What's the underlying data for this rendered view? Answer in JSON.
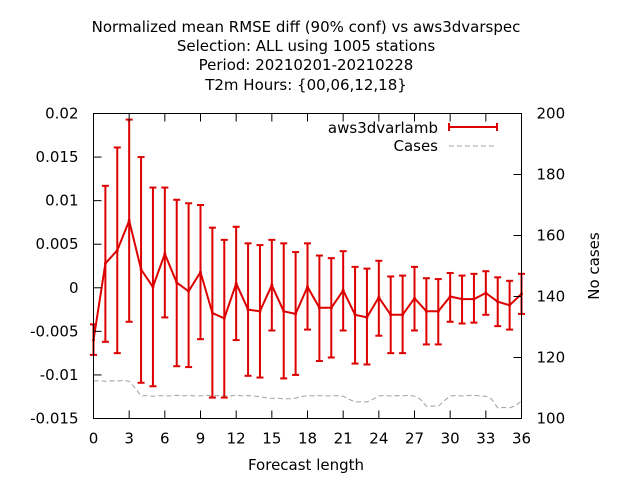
{
  "chart_data": {
    "type": "line",
    "title_lines": [
      "Normalized mean RMSE diff (90% conf) vs aws3dvarspec",
      "Selection: ALL using  1005 stations",
      "Period: 20210201-20210228",
      "T2m   Hours: {00,06,12,18}"
    ],
    "xlabel": "Forecast length",
    "ylabel_left": "",
    "ylabel_right": "No cases",
    "xlim": [
      0,
      36
    ],
    "ylim_left": [
      -0.015,
      0.02
    ],
    "ylim_right": [
      100,
      200
    ],
    "x_ticks": [
      0,
      3,
      6,
      9,
      12,
      15,
      18,
      21,
      24,
      27,
      30,
      33,
      36
    ],
    "y_ticks_left": [
      "-0.015",
      "-0.01",
      "-0.005",
      "0",
      "0.005",
      "0.01",
      "0.015",
      "0.02"
    ],
    "y_ticks_right": [
      100,
      120,
      140,
      160,
      180,
      200
    ],
    "grid": false,
    "legend_position": "top-right",
    "series": [
      {
        "name": "aws3dvarlamb",
        "color": "#dd0000",
        "style": "line-errorbars",
        "points": [
          {
            "x": 0,
            "y": -0.006,
            "lo": -0.0077,
            "hi": -0.0042
          },
          {
            "x": 1,
            "y": 0.0028,
            "lo": -0.0062,
            "hi": 0.0117
          },
          {
            "x": 2,
            "y": 0.0043,
            "lo": -0.0075,
            "hi": 0.0161
          },
          {
            "x": 3,
            "y": 0.0077,
            "lo": -0.0039,
            "hi": 0.0193
          },
          {
            "x": 4,
            "y": 0.0021,
            "lo": -0.0109,
            "hi": 0.015
          },
          {
            "x": 5,
            "y": 0.0001,
            "lo": -0.0113,
            "hi": 0.0115
          },
          {
            "x": 6,
            "y": 0.0039,
            "lo": -0.0034,
            "hi": 0.0115
          },
          {
            "x": 7,
            "y": 0.0006,
            "lo": -0.009,
            "hi": 0.0101
          },
          {
            "x": 8,
            "y": -0.0004,
            "lo": -0.0091,
            "hi": 0.0097
          },
          {
            "x": 9,
            "y": 0.0018,
            "lo": -0.0059,
            "hi": 0.0095
          },
          {
            "x": 10,
            "y": -0.0029,
            "lo": -0.0126,
            "hi": 0.0069
          },
          {
            "x": 11,
            "y": -0.0035,
            "lo": -0.0126,
            "hi": 0.0055
          },
          {
            "x": 12,
            "y": 0.0005,
            "lo": -0.006,
            "hi": 0.007
          },
          {
            "x": 13,
            "y": -0.0025,
            "lo": -0.0101,
            "hi": 0.0051
          },
          {
            "x": 14,
            "y": -0.0027,
            "lo": -0.0103,
            "hi": 0.0049
          },
          {
            "x": 15,
            "y": 0.0003,
            "lo": -0.0049,
            "hi": 0.0055
          },
          {
            "x": 16,
            "y": -0.0027,
            "lo": -0.0104,
            "hi": 0.0051
          },
          {
            "x": 17,
            "y": -0.003,
            "lo": -0.01,
            "hi": 0.0041
          },
          {
            "x": 18,
            "y": 0.0001,
            "lo": -0.0048,
            "hi": 0.0051
          },
          {
            "x": 19,
            "y": -0.0023,
            "lo": -0.0084,
            "hi": 0.0037
          },
          {
            "x": 20,
            "y": -0.0023,
            "lo": -0.008,
            "hi": 0.0034
          },
          {
            "x": 21,
            "y": -0.0003,
            "lo": -0.0049,
            "hi": 0.0042
          },
          {
            "x": 22,
            "y": -0.0031,
            "lo": -0.0087,
            "hi": 0.0024
          },
          {
            "x": 23,
            "y": -0.0034,
            "lo": -0.0088,
            "hi": 0.0022
          },
          {
            "x": 24,
            "y": -0.0011,
            "lo": -0.0055,
            "hi": 0.0031
          },
          {
            "x": 25,
            "y": -0.0031,
            "lo": -0.0075,
            "hi": 0.0013
          },
          {
            "x": 26,
            "y": -0.0031,
            "lo": -0.0075,
            "hi": 0.0014
          },
          {
            "x": 27,
            "y": -0.0012,
            "lo": -0.0049,
            "hi": 0.0024
          },
          {
            "x": 28,
            "y": -0.0027,
            "lo": -0.0065,
            "hi": 0.0011
          },
          {
            "x": 29,
            "y": -0.0027,
            "lo": -0.0065,
            "hi": 0.001
          },
          {
            "x": 30,
            "y": -0.001,
            "lo": -0.0039,
            "hi": 0.0017
          },
          {
            "x": 31,
            "y": -0.0013,
            "lo": -0.0041,
            "hi": 0.0014
          },
          {
            "x": 32,
            "y": -0.0013,
            "lo": -0.004,
            "hi": 0.0016
          },
          {
            "x": 33,
            "y": -0.0006,
            "lo": -0.0031,
            "hi": 0.0019
          },
          {
            "x": 34,
            "y": -0.0016,
            "lo": -0.0044,
            "hi": 0.0012
          },
          {
            "x": 35,
            "y": -0.002,
            "lo": -0.0048,
            "hi": 0.0008
          },
          {
            "x": 36,
            "y": -0.0007,
            "lo": -0.003,
            "hi": 0.0016
          }
        ]
      },
      {
        "name": "Cases",
        "color": "#a0a0a0",
        "style": "dashed",
        "axis": "right",
        "x": [
          0,
          0.5,
          1,
          1.5,
          2,
          2.5,
          3,
          3.5,
          4,
          4.5,
          5,
          5.5,
          6,
          6.5,
          7,
          7.5,
          8,
          8.5,
          9,
          9.5,
          10,
          10.5,
          11,
          11.5,
          12,
          12.5,
          13,
          13.5,
          14,
          14.5,
          15,
          15.5,
          16,
          16.5,
          17,
          17.5,
          18,
          18.5,
          19,
          19.5,
          20,
          20.5,
          21,
          21.5,
          22,
          22.5,
          23,
          23.5,
          24,
          24.5,
          25,
          25.5,
          26,
          26.5,
          27,
          27.5,
          28,
          28.5,
          29,
          29.5,
          30,
          30.5,
          31,
          31.5,
          32,
          32.5,
          33,
          33.5,
          34,
          34.5,
          35,
          35.5,
          36
        ],
        "values": [
          112.3,
          112.4,
          112.2,
          112.4,
          112.3,
          112.5,
          112.2,
          110,
          107.4,
          107.5,
          107.3,
          107.5,
          107.4,
          107.4,
          107.6,
          107.4,
          107.5,
          107.4,
          107.4,
          107.6,
          107.4,
          107.5,
          107.4,
          107.4,
          107.6,
          107.4,
          107.5,
          107.4,
          107.1,
          106.8,
          106.6,
          106.7,
          106.4,
          106.5,
          106.7,
          107.2,
          107.5,
          107.4,
          107.5,
          107.4,
          107.4,
          107.5,
          107.3,
          106.3,
          105.4,
          105.5,
          105.4,
          106.3,
          107.4,
          107.5,
          107.4,
          107.5,
          107.4,
          107.6,
          107.3,
          106.3,
          104,
          104.1,
          104,
          105.8,
          107.4,
          107.5,
          107.4,
          107.5,
          107.6,
          107.4,
          107.3,
          106.3,
          103.5,
          103.6,
          103.5,
          104.2,
          105.8
        ]
      }
    ]
  }
}
